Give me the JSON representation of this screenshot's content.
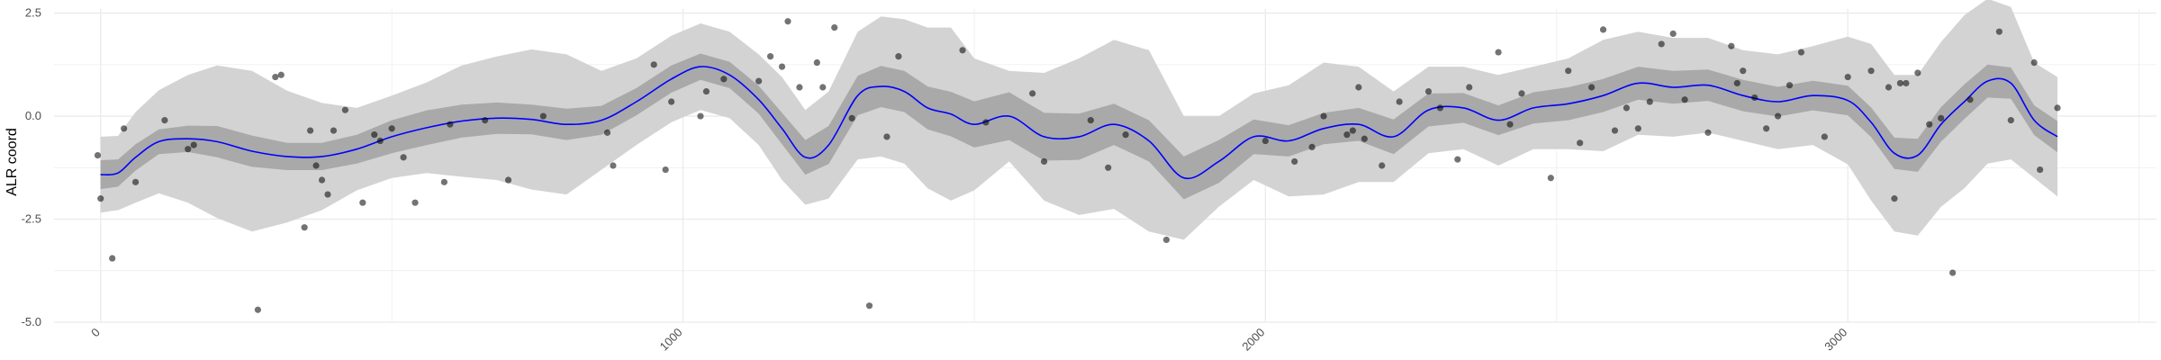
{
  "chart_data": {
    "type": "line",
    "title": "",
    "xlabel": "",
    "ylabel": "ALR coord",
    "xlim": [
      -80,
      3530
    ],
    "ylim": [
      -5.0,
      2.6
    ],
    "x_ticks": [
      0,
      1000,
      2000,
      3000
    ],
    "x_tick_labels": [
      "0",
      "1000",
      "2000",
      "3000"
    ],
    "y_ticks": [
      -5.0,
      -2.5,
      0.0,
      2.5
    ],
    "y_tick_labels": [
      "-5.0",
      "-2.5",
      "0.0",
      "2.5"
    ],
    "grid": true,
    "legend": "none",
    "colors": {
      "trend_line": "#0000ff",
      "inner_band": "#a9a9a9",
      "outer_band": "#d3d3d3",
      "points": "#000000",
      "grid": "#ebebeb"
    },
    "trend": {
      "x": [
        0,
        30,
        60,
        100,
        150,
        200,
        260,
        320,
        380,
        440,
        500,
        560,
        620,
        680,
        740,
        800,
        860,
        920,
        980,
        1030,
        1080,
        1130,
        1170,
        1210,
        1250,
        1300,
        1340,
        1380,
        1420,
        1460,
        1500,
        1560,
        1620,
        1680,
        1740,
        1800,
        1860,
        1920,
        1980,
        2040,
        2100,
        2160,
        2220,
        2280,
        2340,
        2400,
        2460,
        2520,
        2580,
        2640,
        2700,
        2760,
        2820,
        2880,
        2940,
        3000,
        3040,
        3080,
        3120,
        3160,
        3200,
        3240,
        3280,
        3320,
        3360
      ],
      "y": [
        -1.42,
        -1.38,
        -1.0,
        -0.62,
        -0.55,
        -0.62,
        -0.85,
        -0.98,
        -0.98,
        -0.8,
        -0.5,
        -0.28,
        -0.12,
        -0.05,
        -0.08,
        -0.2,
        -0.1,
        0.35,
        0.9,
        1.2,
        1.0,
        0.4,
        -0.3,
        -1.0,
        -0.7,
        0.5,
        0.72,
        0.6,
        0.2,
        0.05,
        -0.2,
        0.0,
        -0.5,
        -0.5,
        -0.2,
        -0.6,
        -1.5,
        -1.1,
        -0.5,
        -0.6,
        -0.3,
        -0.2,
        -0.5,
        0.15,
        0.2,
        -0.1,
        0.2,
        0.3,
        0.5,
        0.8,
        0.7,
        0.75,
        0.5,
        0.35,
        0.5,
        0.38,
        -0.15,
        -0.9,
        -0.95,
        -0.2,
        0.35,
        0.85,
        0.8,
        -0.1,
        -0.5
      ],
      "inner_half_width": [
        0.35,
        0.33,
        0.32,
        0.3,
        0.32,
        0.38,
        0.38,
        0.33,
        0.33,
        0.35,
        0.4,
        0.42,
        0.4,
        0.38,
        0.36,
        0.38,
        0.35,
        0.33,
        0.33,
        0.32,
        0.32,
        0.34,
        0.38,
        0.42,
        0.46,
        0.48,
        0.5,
        0.5,
        0.52,
        0.54,
        0.56,
        0.58,
        0.58,
        0.56,
        0.5,
        0.5,
        0.52,
        0.52,
        0.42,
        0.38,
        0.38,
        0.4,
        0.42,
        0.4,
        0.36,
        0.36,
        0.38,
        0.4,
        0.4,
        0.4,
        0.4,
        0.38,
        0.38,
        0.36,
        0.36,
        0.36,
        0.36,
        0.38,
        0.4,
        0.42,
        0.42,
        0.4,
        0.38,
        0.36,
        0.38
      ],
      "outer_half_width": [
        0.92,
        0.9,
        1.1,
        1.25,
        1.55,
        1.85,
        1.95,
        1.6,
        1.3,
        1.0,
        1.0,
        1.1,
        1.35,
        1.5,
        1.7,
        1.7,
        1.2,
        1.05,
        1.05,
        1.05,
        1.05,
        1.1,
        1.25,
        1.15,
        1.3,
        1.55,
        1.7,
        1.75,
        1.95,
        2.1,
        1.6,
        1.1,
        1.55,
        1.9,
        2.05,
        2.2,
        1.5,
        1.1,
        1.05,
        1.35,
        1.6,
        1.4,
        1.1,
        1.05,
        1.0,
        1.1,
        1.0,
        1.1,
        1.35,
        1.25,
        1.2,
        1.15,
        1.1,
        1.15,
        1.2,
        1.55,
        1.9,
        1.9,
        1.95,
        2.0,
        2.1,
        2.0,
        1.85,
        1.4,
        1.45
      ]
    },
    "points": {
      "x": [
        -5,
        0,
        20,
        40,
        60,
        110,
        150,
        160,
        270,
        300,
        310,
        350,
        360,
        370,
        380,
        390,
        400,
        420,
        450,
        470,
        480,
        500,
        520,
        540,
        590,
        600,
        660,
        700,
        760,
        870,
        880,
        950,
        970,
        980,
        1030,
        1040,
        1070,
        1130,
        1150,
        1170,
        1180,
        1200,
        1230,
        1240,
        1260,
        1290,
        1320,
        1350,
        1370,
        1480,
        1520,
        1600,
        1620,
        1700,
        1730,
        1760,
        1830,
        2000,
        2050,
        2080,
        2100,
        2140,
        2150,
        2160,
        2170,
        2200,
        2230,
        2280,
        2300,
        2330,
        2350,
        2400,
        2420,
        2440,
        2490,
        2520,
        2540,
        2560,
        2580,
        2600,
        2620,
        2640,
        2660,
        2680,
        2700,
        2720,
        2760,
        2800,
        2810,
        2820,
        2840,
        2860,
        2880,
        2900,
        2920,
        2960,
        3000,
        3040,
        3070,
        3080,
        3090,
        3100,
        3120,
        3140,
        3160,
        3180,
        3210,
        3260,
        3280,
        3320,
        3330,
        3360
      ],
      "y": [
        -0.95,
        -2.0,
        -3.45,
        -0.3,
        -1.6,
        -0.1,
        -0.8,
        -0.7,
        -4.7,
        0.95,
        1.0,
        -2.7,
        -0.35,
        -1.2,
        -1.55,
        -1.9,
        -0.35,
        0.15,
        -2.1,
        -0.45,
        -0.6,
        -0.3,
        -1.0,
        -2.1,
        -1.6,
        -0.2,
        -0.1,
        -1.55,
        0.0,
        -0.4,
        -1.2,
        1.25,
        -1.3,
        0.35,
        0.0,
        0.6,
        0.9,
        0.85,
        1.45,
        1.2,
        2.3,
        0.7,
        1.3,
        0.7,
        2.15,
        -0.05,
        -4.6,
        -0.5,
        1.45,
        1.6,
        -0.15,
        0.55,
        -1.1,
        -0.1,
        -1.25,
        -0.45,
        -3.0,
        -0.6,
        -1.1,
        -0.75,
        0.0,
        -0.45,
        -0.35,
        0.7,
        -0.55,
        -1.2,
        0.35,
        0.6,
        0.2,
        -1.05,
        0.7,
        1.55,
        -0.2,
        0.55,
        -1.5,
        1.1,
        -0.65,
        0.7,
        2.1,
        -0.35,
        0.2,
        -0.3,
        0.35,
        1.75,
        2.0,
        0.4,
        -0.4,
        1.7,
        0.8,
        1.1,
        0.45,
        -0.3,
        0.0,
        0.75,
        1.55,
        -0.5,
        0.95,
        1.1,
        0.7,
        -2.0,
        0.8,
        0.8,
        1.05,
        -0.2,
        -0.05,
        -3.8,
        0.4,
        2.05,
        -0.1,
        1.3,
        -1.3,
        0.2
      ]
    }
  }
}
